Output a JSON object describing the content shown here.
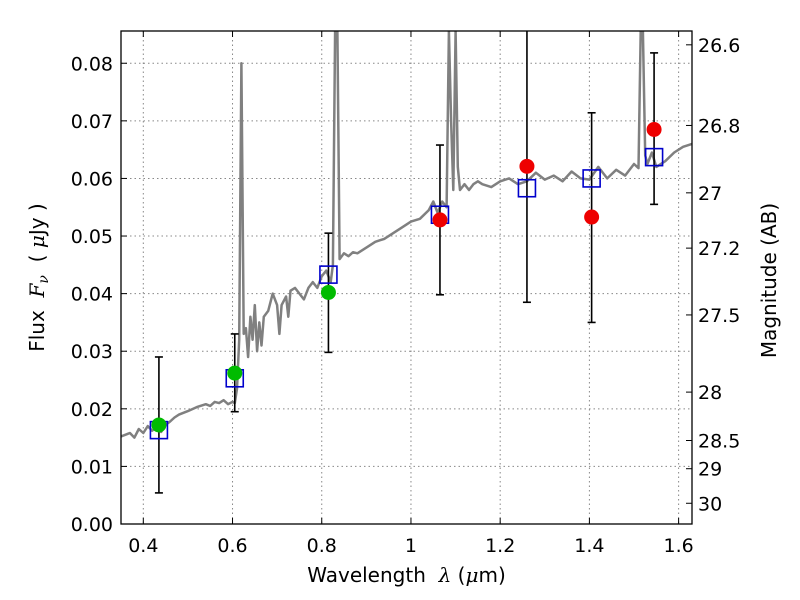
{
  "chart_data": {
    "type": "scatter",
    "xlabel": "Wavelength",
    "xlabel_symbol": "λ",
    "xlabel_unit_open": "(",
    "xlabel_unit_mu": "μ",
    "xlabel_unit_rest": "m)",
    "ylabel": "Flux",
    "ylabel_symbol": "F",
    "ylabel_subscript": "ν",
    "ylabel_unit_open": "(",
    "ylabel_unit_mu": "μ",
    "ylabel_unit_rest": "Jy )",
    "y2label": "Magnitude (AB)",
    "xlim": [
      0.35,
      1.63
    ],
    "ylim": [
      0.0,
      0.0856
    ],
    "grid": true,
    "xticks": [
      0.4,
      0.6,
      0.8,
      1.0,
      1.2,
      1.4,
      1.6
    ],
    "xtick_labels": [
      "0.4",
      "0.6",
      "0.8",
      "1",
      "1.2",
      "1.4",
      "1.6"
    ],
    "yticks": [
      0.0,
      0.01,
      0.02,
      0.03,
      0.04,
      0.05,
      0.06,
      0.07,
      0.08
    ],
    "ytick_labels": [
      "0.00",
      "0.01",
      "0.02",
      "0.03",
      "0.04",
      "0.05",
      "0.06",
      "0.07",
      "0.08"
    ],
    "y2ticks": [
      {
        "label": "26.6",
        "flux": 0.0832
      },
      {
        "label": "26.8",
        "flux": 0.0692
      },
      {
        "label": "27",
        "flux": 0.0575
      },
      {
        "label": "27.2",
        "flux": 0.0479
      },
      {
        "label": "27.5",
        "flux": 0.0363
      },
      {
        "label": "28",
        "flux": 0.0229
      },
      {
        "label": "28.5",
        "flux": 0.0145
      },
      {
        "label": "29",
        "flux": 0.0096
      },
      {
        "label": "30",
        "flux": 0.0036
      }
    ],
    "colors": {
      "spectrum": "#808080",
      "model": "#0000cc",
      "green": "#00bb00",
      "red": "#ee0000",
      "errorbar": "#000000",
      "grid": "#888888"
    },
    "spectrum": {
      "x": [
        0.35,
        0.37,
        0.38,
        0.39,
        0.4,
        0.41,
        0.42,
        0.43,
        0.44,
        0.45,
        0.46,
        0.47,
        0.48,
        0.5,
        0.52,
        0.54,
        0.55,
        0.56,
        0.57,
        0.58,
        0.59,
        0.6,
        0.605,
        0.61,
        0.615,
        0.62,
        0.625,
        0.63,
        0.635,
        0.64,
        0.645,
        0.65,
        0.655,
        0.66,
        0.665,
        0.67,
        0.68,
        0.69,
        0.7,
        0.705,
        0.71,
        0.72,
        0.725,
        0.73,
        0.74,
        0.75,
        0.76,
        0.77,
        0.78,
        0.79,
        0.8,
        0.81,
        0.82,
        0.825,
        0.83,
        0.835,
        0.84,
        0.85,
        0.86,
        0.87,
        0.88,
        0.9,
        0.92,
        0.94,
        0.96,
        0.98,
        1.0,
        1.02,
        1.04,
        1.05,
        1.06,
        1.07,
        1.08,
        1.085,
        1.09,
        1.095,
        1.1,
        1.105,
        1.11,
        1.12,
        1.13,
        1.14,
        1.15,
        1.16,
        1.18,
        1.2,
        1.22,
        1.24,
        1.26,
        1.28,
        1.3,
        1.32,
        1.34,
        1.36,
        1.38,
        1.4,
        1.42,
        1.44,
        1.46,
        1.48,
        1.5,
        1.51,
        1.515,
        1.52,
        1.525,
        1.53,
        1.54,
        1.55,
        1.57,
        1.59,
        1.61,
        1.63
      ],
      "y": [
        0.0152,
        0.0158,
        0.015,
        0.0165,
        0.0158,
        0.017,
        0.0162,
        0.0168,
        0.016,
        0.0172,
        0.0178,
        0.0185,
        0.019,
        0.0196,
        0.0203,
        0.0208,
        0.0205,
        0.0212,
        0.021,
        0.0215,
        0.0208,
        0.0212,
        0.021,
        0.0235,
        0.032,
        0.08,
        0.033,
        0.034,
        0.029,
        0.036,
        0.032,
        0.038,
        0.03,
        0.035,
        0.031,
        0.036,
        0.037,
        0.04,
        0.038,
        0.033,
        0.038,
        0.0395,
        0.036,
        0.0405,
        0.041,
        0.04,
        0.039,
        0.041,
        0.042,
        0.041,
        0.043,
        0.044,
        0.042,
        0.045,
        0.0856,
        0.0856,
        0.046,
        0.047,
        0.0465,
        0.0472,
        0.047,
        0.048,
        0.049,
        0.0495,
        0.0505,
        0.0515,
        0.0525,
        0.053,
        0.0545,
        0.056,
        0.054,
        0.056,
        0.055,
        0.0856,
        0.07,
        0.058,
        0.0856,
        0.062,
        0.058,
        0.059,
        0.058,
        0.059,
        0.0595,
        0.059,
        0.0585,
        0.0595,
        0.06,
        0.059,
        0.0595,
        0.061,
        0.0598,
        0.0605,
        0.0595,
        0.0612,
        0.06,
        0.0598,
        0.062,
        0.06,
        0.0615,
        0.0605,
        0.0625,
        0.0618,
        0.0856,
        0.0856,
        0.064,
        0.0625,
        0.0645,
        0.062,
        0.063,
        0.0645,
        0.0655,
        0.066
      ]
    },
    "model_points": [
      {
        "x": 0.435,
        "y": 0.0163
      },
      {
        "x": 0.605,
        "y": 0.0253
      },
      {
        "x": 0.815,
        "y": 0.0433
      },
      {
        "x": 1.065,
        "y": 0.0537
      },
      {
        "x": 1.26,
        "y": 0.0583
      },
      {
        "x": 1.405,
        "y": 0.06
      },
      {
        "x": 1.545,
        "y": 0.0637
      }
    ],
    "observed_points": [
      {
        "x": 0.435,
        "y": 0.0172,
        "err_low": 0.0054,
        "err_high": 0.029,
        "color": "green"
      },
      {
        "x": 0.605,
        "y": 0.0262,
        "err_low": 0.0195,
        "err_high": 0.033,
        "color": "green"
      },
      {
        "x": 0.815,
        "y": 0.0402,
        "err_low": 0.0298,
        "err_high": 0.0505,
        "color": "green"
      },
      {
        "x": 1.065,
        "y": 0.0528,
        "err_low": 0.0398,
        "err_high": 0.0658,
        "color": "red"
      },
      {
        "x": 1.26,
        "y": 0.0621,
        "err_low": 0.0385,
        "err_high": 0.0856,
        "color": "red"
      },
      {
        "x": 1.405,
        "y": 0.0533,
        "err_low": 0.035,
        "err_high": 0.0714,
        "color": "red"
      },
      {
        "x": 1.545,
        "y": 0.0685,
        "err_low": 0.0555,
        "err_high": 0.0818,
        "color": "red"
      }
    ]
  }
}
